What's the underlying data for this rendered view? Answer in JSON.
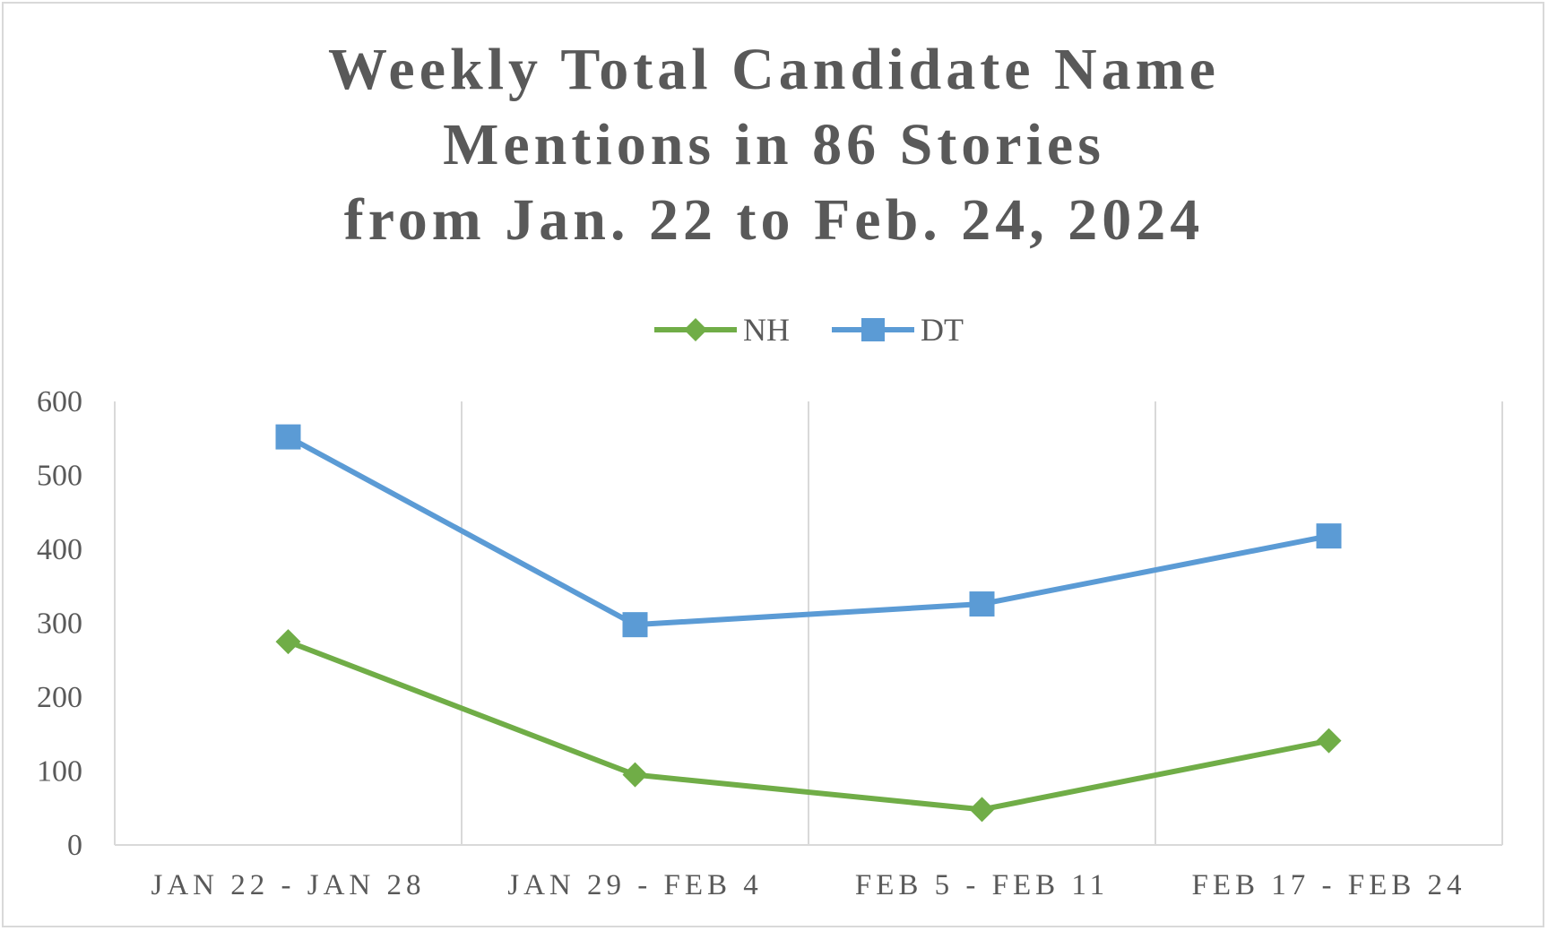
{
  "chart_data": {
    "type": "line",
    "title_lines": [
      "Weekly Total Candidate Name",
      "Mentions in 86 Stories",
      "from Jan. 22 to Feb. 24, 2024"
    ],
    "categories": [
      "JAN 22 - JAN 28",
      "JAN 29 - FEB 4",
      "FEB 5 - FEB 11",
      "FEB 17 - FEB 24"
    ],
    "series": [
      {
        "name": "NH",
        "values": [
          275,
          95,
          48,
          141
        ],
        "color": "#70ad47",
        "marker": "diamond"
      },
      {
        "name": "DT",
        "values": [
          552,
          298,
          326,
          418
        ],
        "color": "#5b9bd5",
        "marker": "square"
      }
    ],
    "y_ticks": [
      "0",
      "100",
      "200",
      "300",
      "400",
      "500",
      "600"
    ],
    "ylim": [
      0,
      600
    ],
    "grid": "vertical",
    "legend_position": "top"
  }
}
